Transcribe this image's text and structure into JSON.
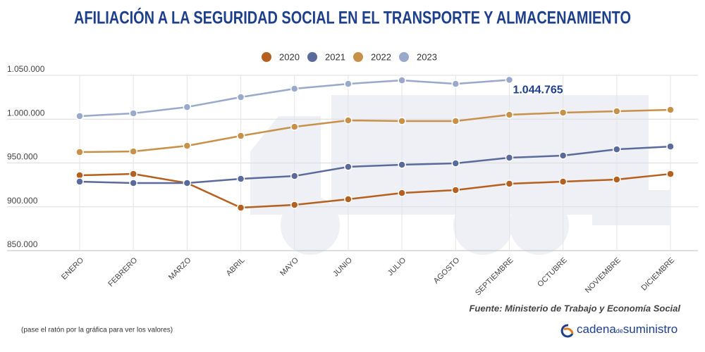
{
  "chart_data": {
    "type": "line",
    "title": "AFILIACIÓN A LA SEGURIDAD SOCIAL EN EL TRANSPORTE Y ALMACENAMIENTO",
    "categories": [
      "ENERO",
      "FEBRERO",
      "MARZO",
      "ABRIL",
      "MAYO",
      "JUNIO",
      "JULIO",
      "AGOSTO",
      "SEPTIEMBRE",
      "OCTUBRE",
      "NOVIEMBRE",
      "DICIEMBRE"
    ],
    "series": [
      {
        "name": "2020",
        "color": "#b5601e",
        "values": [
          935900,
          937500,
          927100,
          899000,
          902200,
          908600,
          915800,
          919100,
          926300,
          928700,
          931100,
          937500
        ]
      },
      {
        "name": "2021",
        "color": "#5a6b9b",
        "values": [
          928700,
          927100,
          927100,
          931900,
          935100,
          945600,
          948000,
          949600,
          956000,
          958400,
          965600,
          968800
        ]
      },
      {
        "name": "2022",
        "color": "#c8914a",
        "values": [
          962400,
          963200,
          969600,
          980900,
          991300,
          998600,
          997800,
          997800,
          1005000,
          1007400,
          1009000,
          1010600
        ]
      },
      {
        "name": "2023",
        "color": "#98a9cc",
        "values": [
          1003400,
          1006600,
          1013800,
          1025100,
          1034700,
          1040300,
          1044300,
          1040300,
          1044765,
          null,
          null,
          null
        ],
        "value_labels": [
          null,
          null,
          null,
          null,
          null,
          null,
          null,
          null,
          "1.044.765",
          null,
          null,
          null
        ]
      }
    ],
    "ylim": [
      850000,
      1050000
    ],
    "yticks": [
      {
        "value": 850000,
        "label": "850.000"
      },
      {
        "value": 900000,
        "label": "900.000"
      },
      {
        "value": 950000,
        "label": "950.000"
      },
      {
        "value": 1000000,
        "label": "1.000.000"
      },
      {
        "value": 1050000,
        "label": "1.050.000"
      }
    ],
    "grid": true,
    "legend": "top",
    "source": "Fuente: Ministerio de Trabajo y Economía Social",
    "note": "(pase el ratón por la gráfica para ver los valores)",
    "brand": {
      "part1": "cadena",
      "part2": "de",
      "part3": "suministro"
    }
  }
}
